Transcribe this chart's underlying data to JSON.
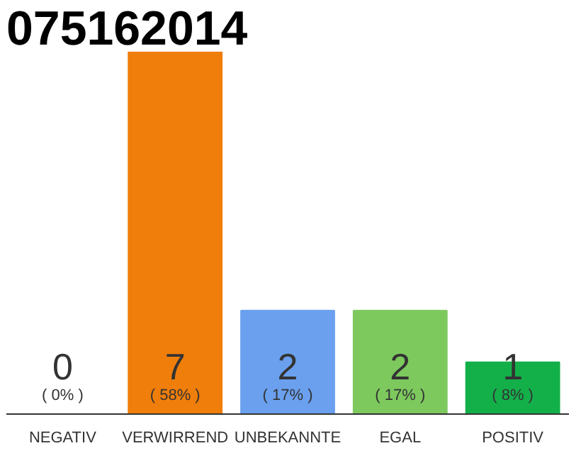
{
  "chart_data": {
    "type": "bar",
    "title": "075162014",
    "categories": [
      "NEGATIV",
      "VERWIRREND",
      "UNBEKANNTE",
      "EGAL",
      "POSITIV"
    ],
    "values": [
      0,
      7,
      2,
      2,
      1
    ],
    "colors": [
      "#e0e0e0",
      "#f07e0a",
      "#6aa0ee",
      "#7dc95e",
      "#13b04a"
    ],
    "data_labels": true,
    "annotations": [
      "( 0% )",
      "( 58% )",
      "( 17% )",
      "( 17% )",
      "( 8% )"
    ],
    "grid": false
  }
}
